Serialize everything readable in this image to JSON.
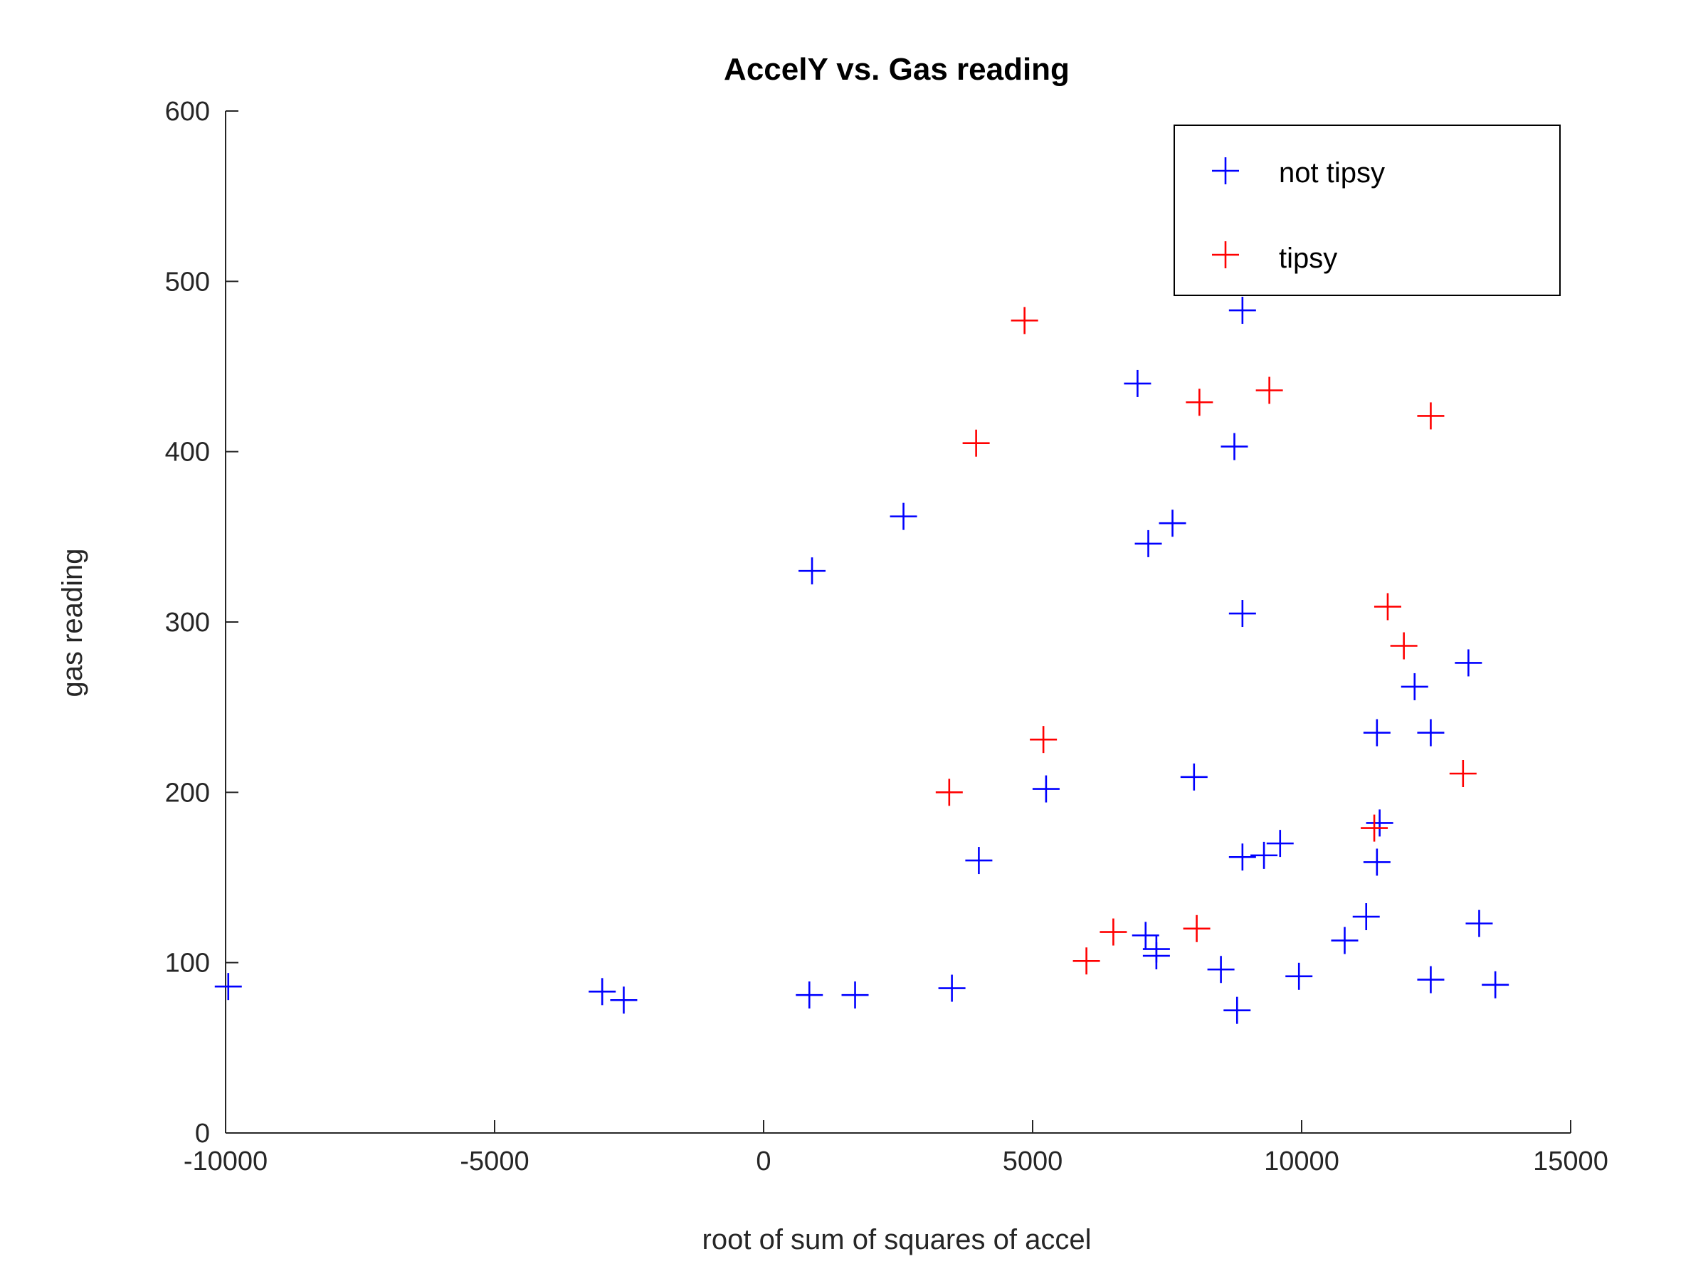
{
  "chart_data": {
    "type": "scatter",
    "title": "AccelY vs. Gas reading",
    "xlabel": "root of sum of squares of accel",
    "ylabel": "gas reading",
    "xlim": [
      -10000,
      15000
    ],
    "ylim": [
      0,
      600
    ],
    "xticks": [
      -10000,
      -5000,
      0,
      5000,
      10000,
      15000
    ],
    "yticks": [
      0,
      100,
      200,
      300,
      400,
      500,
      600
    ],
    "grid": false,
    "legend_position": "top-right",
    "marker": "+",
    "series": [
      {
        "name": "not tipsy",
        "color": "#0000ff",
        "points": [
          [
            -9950,
            86
          ],
          [
            -3000,
            83
          ],
          [
            -2600,
            78
          ],
          [
            850,
            81
          ],
          [
            900,
            330
          ],
          [
            1700,
            81
          ],
          [
            2600,
            362
          ],
          [
            3500,
            85
          ],
          [
            4000,
            160
          ],
          [
            5250,
            202
          ],
          [
            6950,
            440
          ],
          [
            7100,
            116
          ],
          [
            7150,
            346
          ],
          [
            7300,
            104
          ],
          [
            7300,
            108
          ],
          [
            7600,
            358
          ],
          [
            8000,
            209
          ],
          [
            8500,
            96
          ],
          [
            8750,
            403
          ],
          [
            8800,
            72
          ],
          [
            8900,
            162
          ],
          [
            8900,
            305
          ],
          [
            8900,
            483
          ],
          [
            9300,
            163
          ],
          [
            9600,
            170
          ],
          [
            9950,
            92
          ],
          [
            10800,
            113
          ],
          [
            11200,
            127
          ],
          [
            11400,
            159
          ],
          [
            11400,
            235
          ],
          [
            11450,
            182
          ],
          [
            12100,
            262
          ],
          [
            12400,
            90
          ],
          [
            12400,
            235
          ],
          [
            13100,
            276
          ],
          [
            13300,
            123
          ],
          [
            13600,
            87
          ]
        ]
      },
      {
        "name": "tipsy",
        "color": "#ff0000",
        "points": [
          [
            3450,
            200
          ],
          [
            3950,
            405
          ],
          [
            4850,
            477
          ],
          [
            5200,
            231
          ],
          [
            6000,
            101
          ],
          [
            6500,
            118
          ],
          [
            8050,
            120
          ],
          [
            8100,
            429
          ],
          [
            9400,
            436
          ],
          [
            11350,
            179
          ],
          [
            11600,
            309
          ],
          [
            11900,
            286
          ],
          [
            12400,
            421
          ],
          [
            13000,
            211
          ]
        ]
      }
    ]
  }
}
